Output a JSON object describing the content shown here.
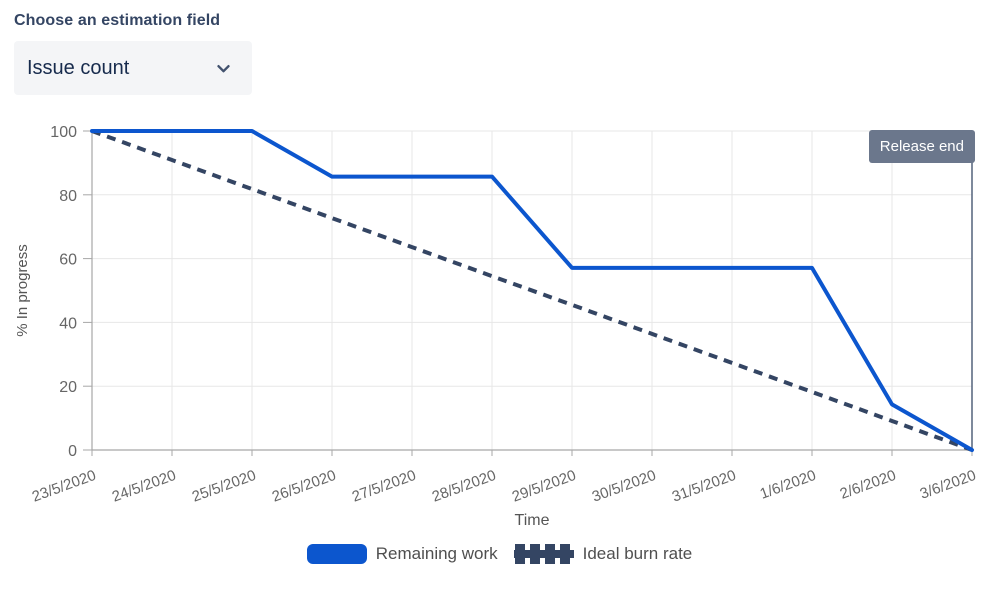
{
  "estimation_field": {
    "label": "Choose an estimation field",
    "selected_value": "Issue count",
    "chevron_icon": "chevron-down"
  },
  "chart_data": {
    "type": "line",
    "x": [
      "23/5/2020",
      "24/5/2020",
      "25/5/2020",
      "26/5/2020",
      "27/5/2020",
      "28/5/2020",
      "29/5/2020",
      "30/5/2020",
      "31/5/2020",
      "1/6/2020",
      "2/6/2020",
      "3/6/2020"
    ],
    "xlabel": "Time",
    "ylabel": "% In progress",
    "ylim": [
      0,
      100
    ],
    "yticks": [
      0,
      20,
      40,
      60,
      80,
      100
    ],
    "grid": true,
    "legend_position": "bottom",
    "annotation": {
      "label": "Release end",
      "position": "top-right",
      "color": "#6B778C"
    },
    "series": [
      {
        "name": "Remaining work",
        "style": "solid",
        "color": "#0C56CE",
        "values": [
          100,
          100,
          100,
          85.7,
          85.7,
          85.7,
          57.1,
          57.1,
          57.1,
          57.1,
          14.3,
          0
        ]
      },
      {
        "name": "Ideal burn rate",
        "style": "dashed",
        "color": "#344563",
        "values": [
          100,
          90.9,
          81.8,
          72.7,
          63.6,
          54.5,
          45.5,
          36.4,
          27.3,
          18.2,
          9.1,
          0
        ]
      }
    ]
  },
  "colors": {
    "accent_blue": "#0C56CE",
    "ideal_navy": "#344563",
    "badge_bg": "#6B778C",
    "release_line": "#5E6C84",
    "dropdown_bg": "#F4F5F7",
    "label_text": "#344563",
    "value_text": "#172B4D",
    "grid_line": "#E7E7E7",
    "axis_line": "#A7A7A7",
    "tick_text": "#666666",
    "axis_title_text": "#555555"
  }
}
